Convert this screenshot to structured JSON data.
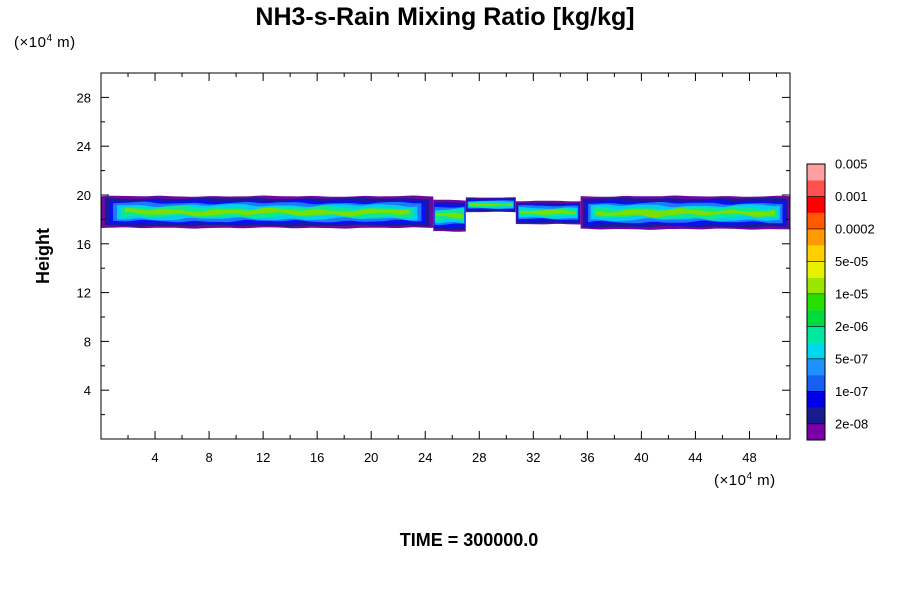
{
  "chart_data": {
    "type": "heatmap",
    "title": "NH3-s-Rain Mixing Ratio [kg/kg]",
    "xlabel": "",
    "ylabel": "Height",
    "x_unit_prefix": "(×10",
    "x_unit_exp": "4",
    "x_unit_suffix": " m)",
    "y_unit_prefix": "(×10",
    "y_unit_exp": "4",
    "y_unit_suffix": " m)",
    "xlim": [
      0,
      51
    ],
    "ylim": [
      0,
      30
    ],
    "x_ticks": [
      4,
      8,
      12,
      16,
      20,
      24,
      28,
      32,
      36,
      40,
      44,
      48
    ],
    "y_ticks": [
      4,
      8,
      12,
      16,
      20,
      24,
      28
    ],
    "x_tick_labels": [
      "4",
      "8",
      "12",
      "16",
      "20",
      "24",
      "28",
      "32",
      "36",
      "40",
      "44",
      "48"
    ],
    "y_tick_labels": [
      "4",
      "8",
      "12",
      "16",
      "20",
      "24",
      "28"
    ],
    "footer": "TIME = 300000.0",
    "colorbar": {
      "colors": [
        "#7a00a8",
        "#1a1a8f",
        "#0000e6",
        "#1560f0",
        "#1e90ff",
        "#00d8f0",
        "#00e8a0",
        "#00dc3c",
        "#28e000",
        "#9ae600",
        "#e6f000",
        "#ffd000",
        "#ff9a00",
        "#ff5a00",
        "#ff0000",
        "#ff5050",
        "#ffa0a0"
      ],
      "labels": [
        "2e-08",
        "1e-07",
        "5e-07",
        "2e-06",
        "1e-05",
        "5e-05",
        "0.0002",
        "0.001",
        "0.005"
      ]
    },
    "bands": {
      "colors": [
        "#6a0aa0",
        "#1a1a9a",
        "#0a10f0",
        "#1e78ff",
        "#00d0ee",
        "#10e890",
        "#7ae000"
      ],
      "segments": [
        {
          "x0": 0,
          "x1": 24.6,
          "y_bottom": 17.3,
          "y_top": 19.9
        },
        {
          "x0": 24.6,
          "x1": 27.0,
          "y_bottom": 17.0,
          "y_top": 19.6
        },
        {
          "x0": 27.0,
          "x1": 30.7,
          "y_bottom": 18.6,
          "y_top": 19.8
        },
        {
          "x0": 30.7,
          "x1": 35.5,
          "y_bottom": 17.6,
          "y_top": 19.5
        },
        {
          "x0": 35.5,
          "x1": 51,
          "y_bottom": 17.2,
          "y_top": 19.9
        }
      ]
    }
  }
}
